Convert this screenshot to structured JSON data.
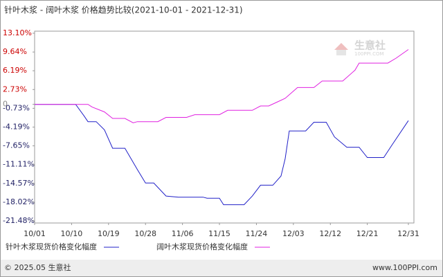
{
  "chart_data": {
    "type": "line",
    "title": "针叶木浆 - 阔叶木浆 价格趋势比较(2021-10-01 - 2021-12-31)",
    "xlim": [
      "10/01",
      "12/31"
    ],
    "xticks": [
      "10/01",
      "10/10",
      "10/19",
      "10/28",
      "11/06",
      "11/15",
      "11/24",
      "12/03",
      "12/12",
      "12/21",
      "12/31"
    ],
    "ylim": [
      -21.48,
      13.1
    ],
    "yticks": [
      {
        "value": 13.1,
        "label": "13.10%"
      },
      {
        "value": 9.64,
        "label": "9.64%"
      },
      {
        "value": 6.19,
        "label": "6.19%"
      },
      {
        "value": 2.73,
        "label": "2.73%"
      },
      0,
      {
        "value": -0.73,
        "label": "-0.73%"
      },
      {
        "value": -4.19,
        "label": "-4.19%"
      },
      {
        "value": -7.65,
        "label": "-7.65%"
      },
      {
        "value": -11.11,
        "label": "-11.11%"
      },
      {
        "value": -14.57,
        "label": "-14.57%"
      },
      {
        "value": -18.02,
        "label": "-18.02%"
      },
      {
        "value": -21.48,
        "label": "-21.48%"
      }
    ],
    "series": [
      {
        "name": "针叶木浆现货价格变化幅度",
        "color": "#2020c8",
        "x": [
          "10/01",
          "10/11",
          "10/13",
          "10/14",
          "10/16",
          "10/18",
          "10/20",
          "10/23",
          "10/26",
          "10/28",
          "10/30",
          "11/02",
          "11/05",
          "11/11",
          "11/12",
          "11/15",
          "11/16",
          "11/21",
          "11/23",
          "11/25",
          "11/28",
          "11/30",
          "12/01",
          "12/02",
          "12/06",
          "12/08",
          "12/11",
          "12/13",
          "12/16",
          "12/19",
          "12/21",
          "12/25",
          "12/27",
          "12/31"
        ],
        "values": [
          0,
          0,
          -2.1,
          -3.2,
          -3.2,
          -4.7,
          -8.1,
          -8.1,
          -12.0,
          -14.5,
          -14.5,
          -16.9,
          -17.1,
          -17.1,
          -17.3,
          -17.3,
          -18.5,
          -18.5,
          -16.9,
          -14.9,
          -14.9,
          -13.2,
          -10.0,
          -4.9,
          -4.9,
          -3.3,
          -3.3,
          -6.0,
          -7.9,
          -7.9,
          -9.8,
          -9.8,
          -7.5,
          -3.0
        ]
      },
      {
        "name": "阔叶木浆现货价格变化幅度",
        "color": "#e020e0",
        "x": [
          "10/01",
          "10/14",
          "10/15",
          "10/18",
          "10/20",
          "10/23",
          "10/25",
          "10/26",
          "10/31",
          "11/02",
          "11/07",
          "11/09",
          "11/15",
          "11/17",
          "11/23",
          "11/25",
          "11/27",
          "11/29",
          "12/01",
          "12/04",
          "12/08",
          "12/10",
          "12/15",
          "12/18",
          "12/19",
          "12/26",
          "12/28",
          "12/31"
        ],
        "values": [
          0,
          0,
          -0.5,
          -1.4,
          -2.6,
          -2.6,
          -3.4,
          -3.2,
          -3.2,
          -2.4,
          -2.4,
          -1.9,
          -1.9,
          -1.1,
          -1.1,
          -0.3,
          -0.3,
          0.4,
          1.1,
          3.1,
          3.1,
          4.3,
          4.3,
          6.3,
          7.6,
          7.6,
          8.5,
          10.1
        ]
      }
    ],
    "watermark": [
      "生意社",
      "100PPI.COM"
    ],
    "footer": {
      "left": "© 2025.05 生意社",
      "right": "www.100PPI.com"
    }
  }
}
